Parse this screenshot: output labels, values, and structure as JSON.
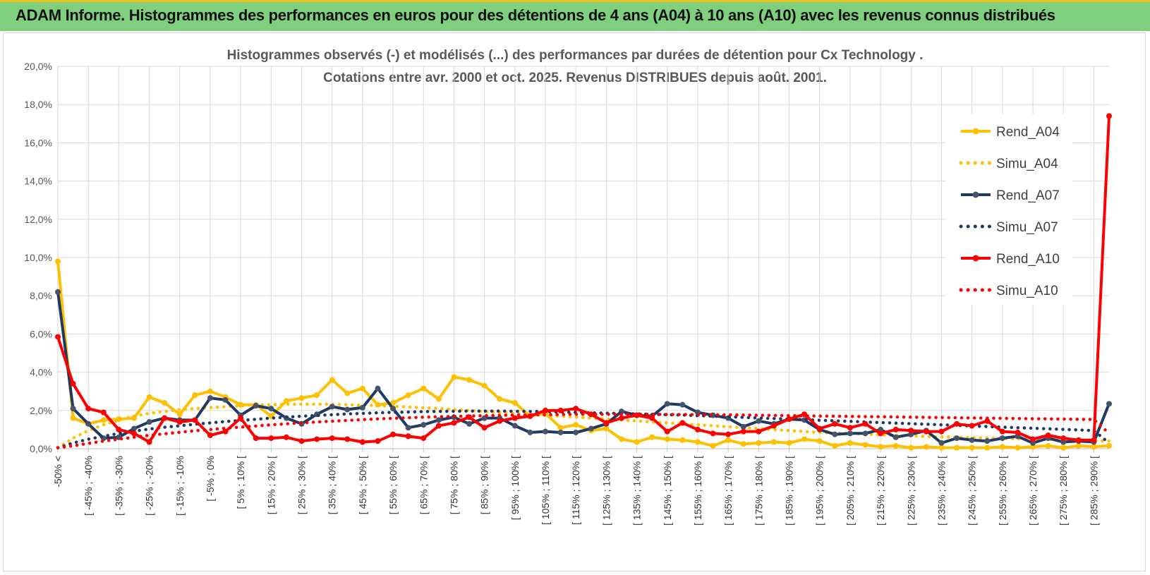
{
  "banner": {
    "title": "ADAM Informe. Histogrammes des performances en euros pour des détentions de 4 ans (A04) à 10 ans (A10) avec les revenus connus distribués",
    "background": "#7fcf7f"
  },
  "chart_data": {
    "type": "line",
    "title": [
      "Histogrammes observés (-) et modélisés (...) des performances par durées de détention pour Cx Technology .",
      "Cotations entre avr. 2000 et oct. 2025. Revenus DISTRIBUES depuis août. 2001."
    ],
    "xlabel": "",
    "ylabel": "",
    "ylim": [
      0,
      20
    ],
    "y_ticks": [
      "0,0%",
      "2,0%",
      "4,0%",
      "6,0%",
      "8,0%",
      "10,0%",
      "12,0%",
      "14,0%",
      "16,0%",
      "18,0%",
      "20,0%"
    ],
    "y_tick_values": [
      0,
      2,
      4,
      6,
      8,
      10,
      12,
      14,
      16,
      18,
      20
    ],
    "grid": true,
    "legend_position": "right",
    "n_categories": 70,
    "x_tick_labels": [
      {
        "i": 0,
        "label": "-50% <"
      },
      {
        "i": 2,
        "label": "[ -45% ; -40%"
      },
      {
        "i": 4,
        "label": "[ -35% ; -30%"
      },
      {
        "i": 6,
        "label": "[ -25% ; -20%"
      },
      {
        "i": 8,
        "label": "[ -15% ; -10%"
      },
      {
        "i": 10,
        "label": "[ -5% ; 0%"
      },
      {
        "i": 12,
        "label": "[ 5% ; 10% ["
      },
      {
        "i": 14,
        "label": "[ 15% ; 20% ["
      },
      {
        "i": 16,
        "label": "[ 25% ; 30% ["
      },
      {
        "i": 18,
        "label": "[ 35% ; 40% ["
      },
      {
        "i": 20,
        "label": "[ 45% ; 50% ["
      },
      {
        "i": 22,
        "label": "[ 55% ; 60% ["
      },
      {
        "i": 24,
        "label": "[ 65% ; 70% ["
      },
      {
        "i": 26,
        "label": "[ 75% ; 80% ["
      },
      {
        "i": 28,
        "label": "[ 85% ; 90% ["
      },
      {
        "i": 30,
        "label": "[ 95% ; 100% ["
      },
      {
        "i": 32,
        "label": "[ 105% ; 110% ["
      },
      {
        "i": 34,
        "label": "[ 115% ; 120% ["
      },
      {
        "i": 36,
        "label": "[ 125% ; 130% ["
      },
      {
        "i": 38,
        "label": "[ 135% ; 140% ["
      },
      {
        "i": 40,
        "label": "[ 145% ; 150% ["
      },
      {
        "i": 42,
        "label": "[ 155% ; 160% ["
      },
      {
        "i": 44,
        "label": "[ 165% ; 170% ["
      },
      {
        "i": 46,
        "label": "[ 175% ; 180% ["
      },
      {
        "i": 48,
        "label": "[ 185% ; 190% ["
      },
      {
        "i": 50,
        "label": "[ 195% ; 200% ["
      },
      {
        "i": 52,
        "label": "[ 205% ; 210% ["
      },
      {
        "i": 54,
        "label": "[ 215% ; 220% ["
      },
      {
        "i": 56,
        "label": "[ 225% ; 230% ["
      },
      {
        "i": 58,
        "label": "[ 235% ; 240% ["
      },
      {
        "i": 60,
        "label": "[ 245% ; 250% ["
      },
      {
        "i": 62,
        "label": "[ 255% ; 260% ["
      },
      {
        "i": 64,
        "label": "[ 265% ; 270% ["
      },
      {
        "i": 66,
        "label": "[ 275% ; 280% ["
      },
      {
        "i": 68,
        "label": "[ 285% ; 290% ["
      }
    ],
    "series": [
      {
        "name": "Rend_A04",
        "color": "#ffc000",
        "style": "solid",
        "values": [
          9.8,
          1.6,
          1.3,
          1.5,
          1.55,
          1.6,
          2.7,
          2.4,
          1.8,
          2.8,
          3.0,
          2.7,
          2.3,
          2.3,
          1.7,
          2.5,
          2.65,
          2.8,
          3.6,
          2.9,
          3.15,
          2.3,
          2.4,
          2.8,
          3.15,
          2.6,
          3.75,
          3.6,
          3.3,
          2.6,
          2.4,
          1.7,
          1.85,
          1.1,
          1.25,
          0.95,
          1.05,
          0.5,
          0.35,
          0.6,
          0.5,
          0.45,
          0.35,
          0.15,
          0.45,
          0.25,
          0.3,
          0.35,
          0.3,
          0.5,
          0.4,
          0.15,
          0.3,
          0.2,
          0.1,
          0.15,
          0.05,
          0.1,
          0.05,
          0.05,
          0.05,
          0.05,
          0.1,
          0.05,
          0.1,
          0.15,
          0.05,
          0.15,
          0.1,
          0.15
        ]
      },
      {
        "name": "Simu_A04",
        "color": "#ffc000",
        "style": "dotted",
        "values": [
          0.05,
          0.55,
          0.95,
          1.25,
          1.5,
          1.7,
          1.85,
          1.95,
          2.05,
          2.1,
          2.15,
          2.2,
          2.25,
          2.3,
          2.3,
          2.32,
          2.33,
          2.33,
          2.32,
          2.3,
          2.28,
          2.25,
          2.22,
          2.18,
          2.14,
          2.1,
          2.05,
          2.0,
          1.95,
          1.9,
          1.85,
          1.8,
          1.75,
          1.7,
          1.65,
          1.6,
          1.55,
          1.5,
          1.45,
          1.4,
          1.35,
          1.3,
          1.25,
          1.2,
          1.15,
          1.1,
          1.05,
          1.0,
          0.95,
          0.9,
          0.85,
          0.82,
          0.79,
          0.76,
          0.73,
          0.7,
          0.67,
          0.64,
          0.62,
          0.6,
          0.58,
          0.56,
          0.54,
          0.52,
          0.5,
          0.48,
          0.46,
          0.44,
          0.42,
          0.4
        ]
      },
      {
        "name": "Rend_A07",
        "color": "#1f3864",
        "style": "solid",
        "values": [
          8.2,
          2.1,
          1.3,
          0.55,
          0.6,
          1.05,
          1.4,
          1.6,
          1.5,
          1.5,
          2.65,
          2.55,
          1.75,
          2.25,
          2.1,
          1.6,
          1.3,
          1.8,
          2.2,
          2.05,
          2.15,
          3.15,
          2.1,
          1.1,
          1.25,
          1.5,
          1.65,
          1.3,
          1.6,
          1.6,
          1.2,
          0.85,
          0.9,
          0.85,
          0.85,
          1.05,
          1.3,
          1.95,
          1.75,
          1.7,
          2.35,
          2.3,
          1.9,
          1.75,
          1.6,
          1.15,
          1.45,
          1.3,
          1.55,
          1.5,
          1.0,
          0.75,
          0.8,
          0.8,
          1.0,
          0.6,
          0.75,
          0.95,
          0.3,
          0.55,
          0.45,
          0.4,
          0.55,
          0.65,
          0.3,
          0.55,
          0.35,
          0.4,
          0.35,
          2.35
        ]
      },
      {
        "name": "Simu_A07",
        "color": "#1f3864",
        "style": "dotted",
        "values": [
          0.05,
          0.3,
          0.5,
          0.65,
          0.8,
          0.92,
          1.03,
          1.12,
          1.2,
          1.28,
          1.35,
          1.42,
          1.48,
          1.54,
          1.6,
          1.65,
          1.7,
          1.74,
          1.78,
          1.82,
          1.85,
          1.88,
          1.9,
          1.92,
          1.94,
          1.95,
          1.96,
          1.97,
          1.97,
          1.97,
          1.96,
          1.95,
          1.94,
          1.92,
          1.9,
          1.88,
          1.86,
          1.84,
          1.82,
          1.8,
          1.78,
          1.76,
          1.73,
          1.7,
          1.67,
          1.64,
          1.61,
          1.58,
          1.55,
          1.52,
          1.49,
          1.46,
          1.43,
          1.4,
          1.37,
          1.34,
          1.31,
          1.28,
          1.25,
          1.22,
          1.19,
          1.16,
          1.13,
          1.1,
          1.07,
          1.04,
          1.01,
          0.98,
          0.95,
          0.3
        ]
      },
      {
        "name": "Rend_A10",
        "color": "#ff0000",
        "style": "solid",
        "values": [
          5.85,
          3.4,
          2.1,
          1.9,
          1.0,
          0.8,
          0.35,
          1.6,
          1.4,
          1.5,
          0.7,
          0.9,
          1.6,
          0.55,
          0.55,
          0.6,
          0.4,
          0.5,
          0.55,
          0.5,
          0.35,
          0.4,
          0.75,
          0.65,
          0.55,
          1.2,
          1.35,
          1.65,
          1.1,
          1.45,
          1.6,
          1.7,
          2.0,
          2.0,
          2.1,
          1.8,
          1.35,
          1.6,
          1.75,
          1.6,
          0.9,
          1.35,
          1.0,
          0.8,
          0.75,
          0.9,
          0.9,
          1.2,
          1.55,
          1.8,
          1.05,
          1.3,
          1.1,
          1.3,
          0.8,
          1.0,
          0.95,
          0.9,
          0.9,
          1.3,
          1.2,
          1.45,
          0.9,
          0.85,
          0.5,
          0.7,
          0.55,
          0.45,
          0.45,
          17.4
        ]
      },
      {
        "name": "Simu_A10",
        "color": "#ff0000",
        "style": "dotted",
        "values": [
          0.05,
          0.15,
          0.28,
          0.4,
          0.5,
          0.6,
          0.7,
          0.78,
          0.86,
          0.94,
          1.0,
          1.07,
          1.13,
          1.19,
          1.25,
          1.3,
          1.35,
          1.4,
          1.44,
          1.48,
          1.52,
          1.56,
          1.59,
          1.62,
          1.65,
          1.67,
          1.69,
          1.71,
          1.73,
          1.75,
          1.76,
          1.77,
          1.78,
          1.79,
          1.8,
          1.8,
          1.8,
          1.8,
          1.8,
          1.8,
          1.79,
          1.79,
          1.78,
          1.78,
          1.77,
          1.76,
          1.75,
          1.74,
          1.73,
          1.72,
          1.71,
          1.7,
          1.69,
          1.68,
          1.67,
          1.66,
          1.65,
          1.64,
          1.63,
          1.62,
          1.61,
          1.6,
          1.59,
          1.58,
          1.57,
          1.56,
          1.55,
          1.54,
          1.53,
          0.8
        ]
      }
    ]
  }
}
